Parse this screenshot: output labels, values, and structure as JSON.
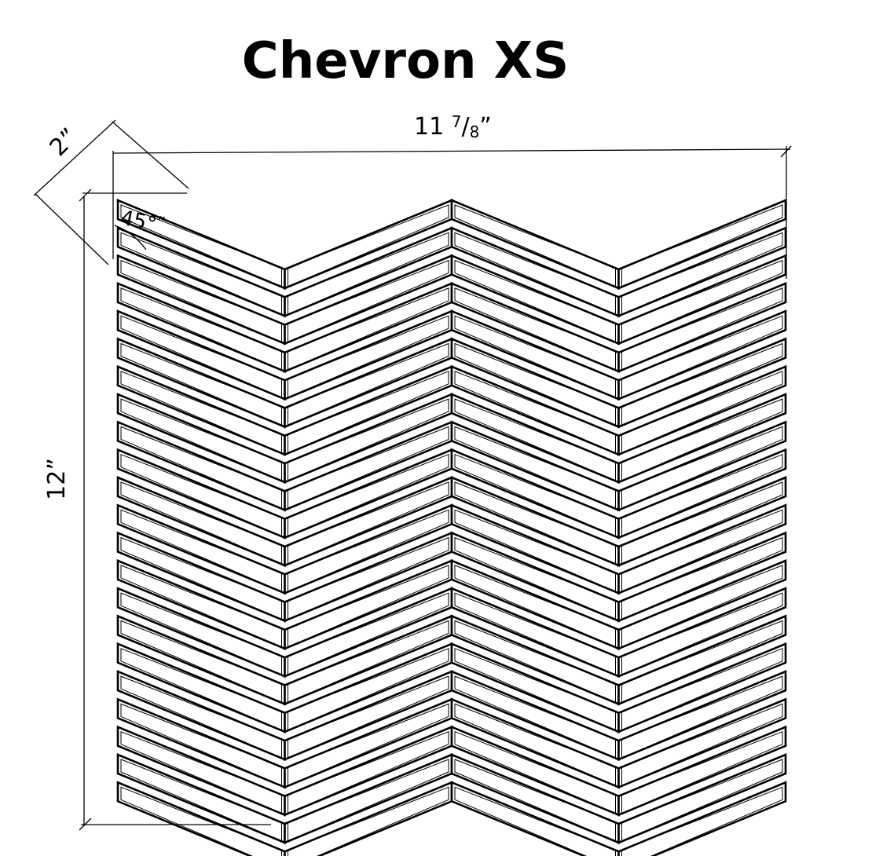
{
  "title": "Chevron XS",
  "dimensions": {
    "width_whole": "11 ",
    "width_num": "7",
    "width_slash": "/",
    "width_den": "8",
    "width_quote": "”",
    "height": "12”",
    "tile_width": "2”",
    "angle": "45°",
    "angle_quote": "”"
  },
  "colors": {
    "lines": "#000000",
    "tile_fill": "#ffffff",
    "background": "#ffffff"
  }
}
